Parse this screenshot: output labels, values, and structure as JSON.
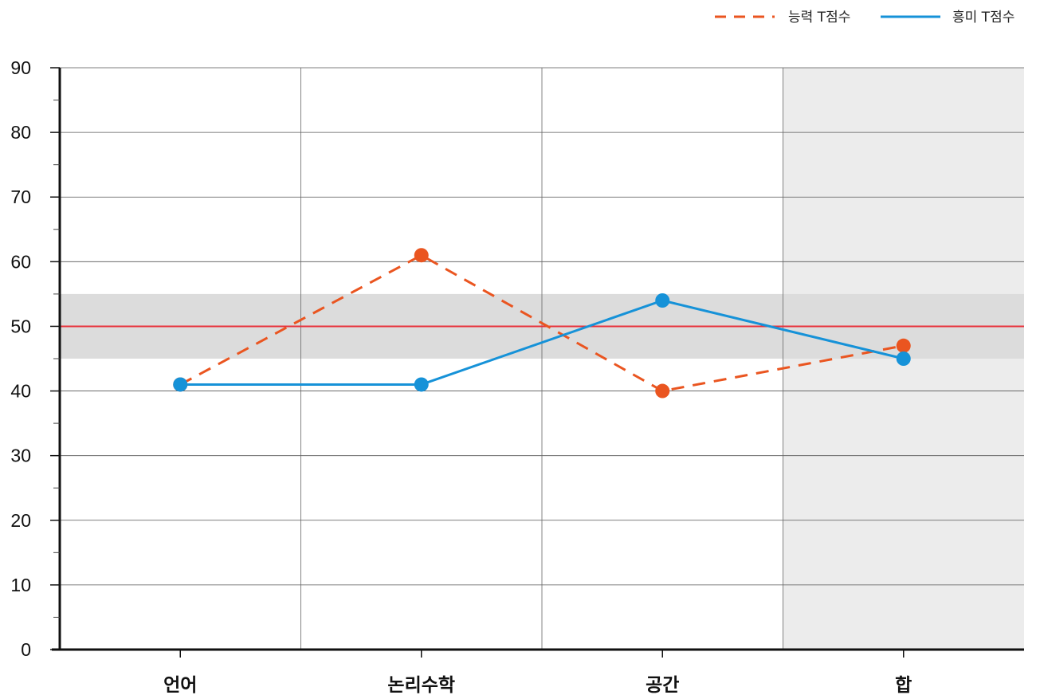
{
  "chart_data": {
    "type": "line",
    "categories": [
      "언어",
      "논리수학",
      "공간",
      "합"
    ],
    "series": [
      {
        "name": "능력 T점수",
        "values": [
          41,
          61,
          40,
          47
        ],
        "color": "#ea5520",
        "line_style": "dashed",
        "marker": "circle"
      },
      {
        "name": "흥미 T점수",
        "values": [
          41,
          41,
          54,
          45
        ],
        "color": "#1692d8",
        "line_style": "solid",
        "marker": "circle"
      }
    ],
    "ylim": [
      0,
      90
    ],
    "yticks": [
      "0",
      "10",
      "20",
      "30",
      "40",
      "50",
      "60",
      "70",
      "80",
      "90"
    ],
    "y_minor_step": 5,
    "reference_line": {
      "value": 50,
      "color": "#e8323c"
    },
    "reference_band": {
      "from": 45,
      "to": 55,
      "color": "#dcdcdc"
    },
    "highlight_category": {
      "index": 3,
      "color": "#ececec"
    },
    "grid": true,
    "legend": {
      "placement": "top-right"
    }
  }
}
